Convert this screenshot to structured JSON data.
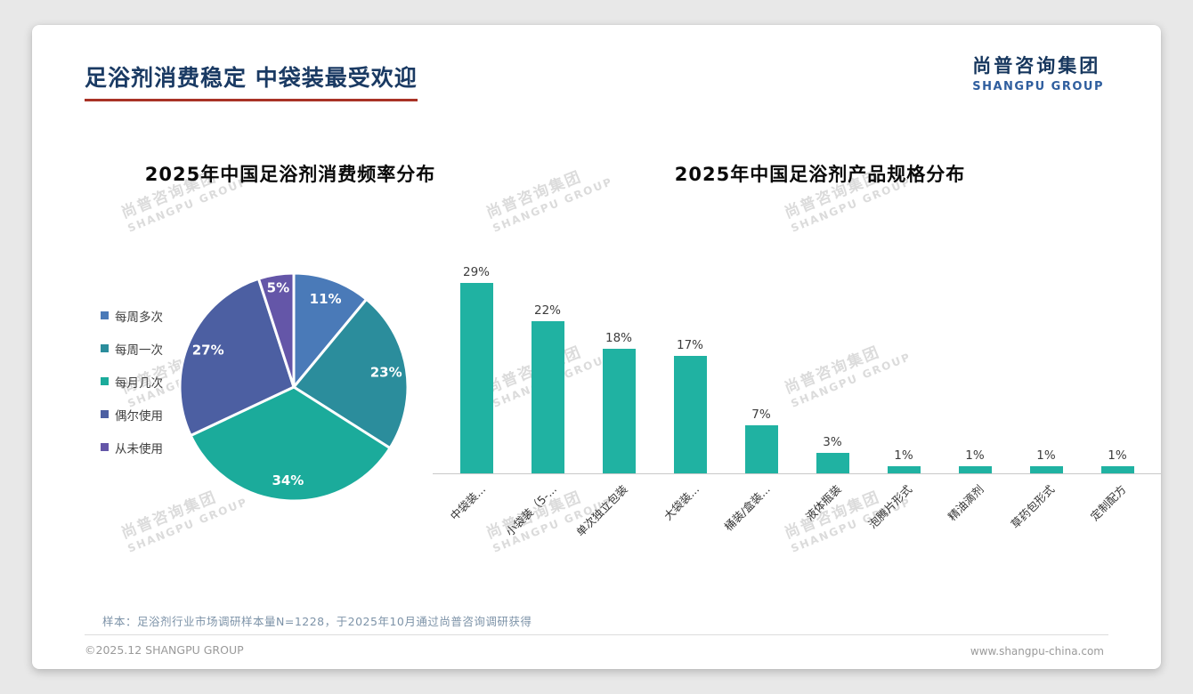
{
  "page": {
    "title": "足浴剂消费稳定 中袋装最受欢迎",
    "logo": {
      "cn": "尚普咨询集团",
      "en": "SHANGPU GROUP"
    },
    "watermark": {
      "cn": "尚普咨询集团",
      "en": "SHANGPU GROUP"
    },
    "footnote": "样本：足浴剂行业市场调研样本量N=1228，于2025年10月通过尚普咨询调研获得",
    "footer": {
      "left": "©2025.12 SHANGPU GROUP",
      "right": "www.shangpu-china.com"
    }
  },
  "chart_data": [
    {
      "type": "pie",
      "title": "2025年中国足浴剂消费频率分布",
      "labels": [
        "每周多次",
        "每周一次",
        "每月几次",
        "偶尔使用",
        "从未使用"
      ],
      "values": [
        11,
        23,
        34,
        27,
        5
      ],
      "unit": "%",
      "data_labels": [
        "11%",
        "23%",
        "34%",
        "27%",
        "5%"
      ],
      "colors": [
        "#4a7ab8",
        "#2b8d9c",
        "#1bab9b",
        "#4c5fa2",
        "#6456a8"
      ],
      "legend_position": "left",
      "start_angle": "top",
      "direction": "clockwise"
    },
    {
      "type": "bar",
      "title": "2025年中国足浴剂产品规格分布",
      "categories": [
        "中袋装...",
        "小袋装（5-...",
        "单次独立包装",
        "大袋装...",
        "桶装/盒装...",
        "液体瓶装",
        "泡腾片形式",
        "精油滴剂",
        "草药包形式",
        "定制配方"
      ],
      "values": [
        29,
        22,
        18,
        17,
        7,
        3,
        1,
        1,
        1,
        1
      ],
      "unit": "%",
      "data_labels": [
        "29%",
        "22%",
        "18%",
        "17%",
        "7%",
        "3%",
        "1%",
        "1%",
        "1%",
        "1%"
      ],
      "bar_color": "#20b2a2",
      "ylim": [
        0,
        32
      ],
      "grid": false,
      "legend_position": "none"
    }
  ]
}
